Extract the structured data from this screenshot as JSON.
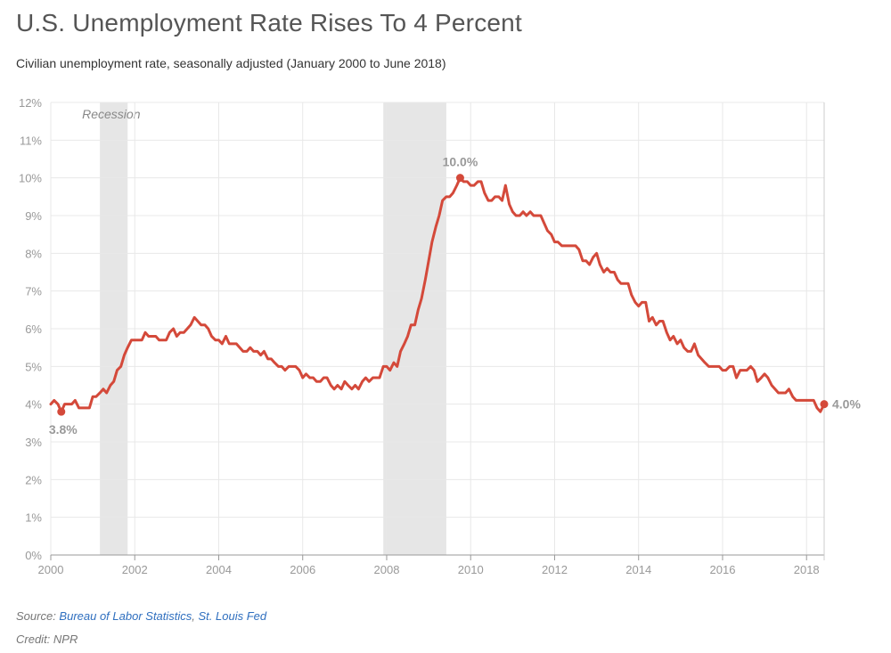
{
  "title": "U.S. Unemployment Rate Rises To 4 Percent",
  "subtitle": "Civilian unemployment rate, seasonally adjusted (January 2000 to June 2018)",
  "source": {
    "prefix": "Source: ",
    "link1": "Bureau of Labor Statistics",
    "sep": ", ",
    "link2": "St. Louis Fed"
  },
  "credit": "Credit: NPR",
  "colors": {
    "line": "#d4493a",
    "recession": "#e6e6e6",
    "grid": "#e8e8e8",
    "axis": "#999999"
  },
  "chart_data": {
    "type": "line",
    "title": "U.S. Unemployment Rate Rises To 4 Percent",
    "subtitle": "Civilian unemployment rate, seasonally adjusted (January 2000 to June 2018)",
    "xlabel": "",
    "ylabel": "",
    "xlim": [
      2000.0,
      2018.42
    ],
    "ylim": [
      0,
      12
    ],
    "grid": true,
    "y_ticks": [
      0,
      1,
      2,
      3,
      4,
      5,
      6,
      7,
      8,
      9,
      10,
      11,
      12
    ],
    "y_tick_labels": [
      "0%",
      "1%",
      "2%",
      "3%",
      "4%",
      "5%",
      "6%",
      "7%",
      "8%",
      "9%",
      "10%",
      "11%",
      "12%"
    ],
    "x_ticks": [
      2000,
      2002,
      2004,
      2006,
      2008,
      2010,
      2012,
      2014,
      2016,
      2018
    ],
    "x_tick_labels": [
      "2000",
      "2002",
      "2004",
      "2006",
      "2008",
      "2010",
      "2012",
      "2014",
      "2016",
      "2018"
    ],
    "recessions": [
      {
        "start": 2001.17,
        "end": 2001.83
      },
      {
        "start": 2007.92,
        "end": 2009.42
      }
    ],
    "recession_label": "Recession",
    "series": [
      {
        "points": [
          [
            2000.0,
            4.0
          ],
          [
            2000.08,
            4.1
          ],
          [
            2000.17,
            4.0
          ],
          [
            2000.25,
            3.8
          ],
          [
            2000.33,
            4.0
          ],
          [
            2000.42,
            4.0
          ],
          [
            2000.5,
            4.0
          ],
          [
            2000.58,
            4.1
          ],
          [
            2000.67,
            3.9
          ],
          [
            2000.75,
            3.9
          ],
          [
            2000.83,
            3.9
          ],
          [
            2000.92,
            3.9
          ],
          [
            2001.0,
            4.2
          ],
          [
            2001.08,
            4.2
          ],
          [
            2001.17,
            4.3
          ],
          [
            2001.25,
            4.4
          ],
          [
            2001.33,
            4.3
          ],
          [
            2001.42,
            4.5
          ],
          [
            2001.5,
            4.6
          ],
          [
            2001.58,
            4.9
          ],
          [
            2001.67,
            5.0
          ],
          [
            2001.75,
            5.3
          ],
          [
            2001.83,
            5.5
          ],
          [
            2001.92,
            5.7
          ],
          [
            2002.0,
            5.7
          ],
          [
            2002.08,
            5.7
          ],
          [
            2002.17,
            5.7
          ],
          [
            2002.25,
            5.9
          ],
          [
            2002.33,
            5.8
          ],
          [
            2002.42,
            5.8
          ],
          [
            2002.5,
            5.8
          ],
          [
            2002.58,
            5.7
          ],
          [
            2002.67,
            5.7
          ],
          [
            2002.75,
            5.7
          ],
          [
            2002.83,
            5.9
          ],
          [
            2002.92,
            6.0
          ],
          [
            2003.0,
            5.8
          ],
          [
            2003.08,
            5.9
          ],
          [
            2003.17,
            5.9
          ],
          [
            2003.25,
            6.0
          ],
          [
            2003.33,
            6.1
          ],
          [
            2003.42,
            6.3
          ],
          [
            2003.5,
            6.2
          ],
          [
            2003.58,
            6.1
          ],
          [
            2003.67,
            6.1
          ],
          [
            2003.75,
            6.0
          ],
          [
            2003.83,
            5.8
          ],
          [
            2003.92,
            5.7
          ],
          [
            2004.0,
            5.7
          ],
          [
            2004.08,
            5.6
          ],
          [
            2004.17,
            5.8
          ],
          [
            2004.25,
            5.6
          ],
          [
            2004.33,
            5.6
          ],
          [
            2004.42,
            5.6
          ],
          [
            2004.5,
            5.5
          ],
          [
            2004.58,
            5.4
          ],
          [
            2004.67,
            5.4
          ],
          [
            2004.75,
            5.5
          ],
          [
            2004.83,
            5.4
          ],
          [
            2004.92,
            5.4
          ],
          [
            2005.0,
            5.3
          ],
          [
            2005.08,
            5.4
          ],
          [
            2005.17,
            5.2
          ],
          [
            2005.25,
            5.2
          ],
          [
            2005.33,
            5.1
          ],
          [
            2005.42,
            5.0
          ],
          [
            2005.5,
            5.0
          ],
          [
            2005.58,
            4.9
          ],
          [
            2005.67,
            5.0
          ],
          [
            2005.75,
            5.0
          ],
          [
            2005.83,
            5.0
          ],
          [
            2005.92,
            4.9
          ],
          [
            2006.0,
            4.7
          ],
          [
            2006.08,
            4.8
          ],
          [
            2006.17,
            4.7
          ],
          [
            2006.25,
            4.7
          ],
          [
            2006.33,
            4.6
          ],
          [
            2006.42,
            4.6
          ],
          [
            2006.5,
            4.7
          ],
          [
            2006.58,
            4.7
          ],
          [
            2006.67,
            4.5
          ],
          [
            2006.75,
            4.4
          ],
          [
            2006.83,
            4.5
          ],
          [
            2006.92,
            4.4
          ],
          [
            2007.0,
            4.6
          ],
          [
            2007.08,
            4.5
          ],
          [
            2007.17,
            4.4
          ],
          [
            2007.25,
            4.5
          ],
          [
            2007.33,
            4.4
          ],
          [
            2007.42,
            4.6
          ],
          [
            2007.5,
            4.7
          ],
          [
            2007.58,
            4.6
          ],
          [
            2007.67,
            4.7
          ],
          [
            2007.75,
            4.7
          ],
          [
            2007.83,
            4.7
          ],
          [
            2007.92,
            5.0
          ],
          [
            2008.0,
            5.0
          ],
          [
            2008.08,
            4.9
          ],
          [
            2008.17,
            5.1
          ],
          [
            2008.25,
            5.0
          ],
          [
            2008.33,
            5.4
          ],
          [
            2008.42,
            5.6
          ],
          [
            2008.5,
            5.8
          ],
          [
            2008.58,
            6.1
          ],
          [
            2008.67,
            6.1
          ],
          [
            2008.75,
            6.5
          ],
          [
            2008.83,
            6.8
          ],
          [
            2008.92,
            7.3
          ],
          [
            2009.0,
            7.8
          ],
          [
            2009.08,
            8.3
          ],
          [
            2009.17,
            8.7
          ],
          [
            2009.25,
            9.0
          ],
          [
            2009.33,
            9.4
          ],
          [
            2009.42,
            9.5
          ],
          [
            2009.5,
            9.5
          ],
          [
            2009.58,
            9.6
          ],
          [
            2009.67,
            9.8
          ],
          [
            2009.75,
            10.0
          ],
          [
            2009.83,
            9.9
          ],
          [
            2009.92,
            9.9
          ],
          [
            2010.0,
            9.8
          ],
          [
            2010.08,
            9.8
          ],
          [
            2010.17,
            9.9
          ],
          [
            2010.25,
            9.9
          ],
          [
            2010.33,
            9.6
          ],
          [
            2010.42,
            9.4
          ],
          [
            2010.5,
            9.4
          ],
          [
            2010.58,
            9.5
          ],
          [
            2010.67,
            9.5
          ],
          [
            2010.75,
            9.4
          ],
          [
            2010.83,
            9.8
          ],
          [
            2010.92,
            9.3
          ],
          [
            2011.0,
            9.1
          ],
          [
            2011.08,
            9.0
          ],
          [
            2011.17,
            9.0
          ],
          [
            2011.25,
            9.1
          ],
          [
            2011.33,
            9.0
          ],
          [
            2011.42,
            9.1
          ],
          [
            2011.5,
            9.0
          ],
          [
            2011.58,
            9.0
          ],
          [
            2011.67,
            9.0
          ],
          [
            2011.75,
            8.8
          ],
          [
            2011.83,
            8.6
          ],
          [
            2011.92,
            8.5
          ],
          [
            2012.0,
            8.3
          ],
          [
            2012.08,
            8.3
          ],
          [
            2012.17,
            8.2
          ],
          [
            2012.25,
            8.2
          ],
          [
            2012.33,
            8.2
          ],
          [
            2012.42,
            8.2
          ],
          [
            2012.5,
            8.2
          ],
          [
            2012.58,
            8.1
          ],
          [
            2012.67,
            7.8
          ],
          [
            2012.75,
            7.8
          ],
          [
            2012.83,
            7.7
          ],
          [
            2012.92,
            7.9
          ],
          [
            2013.0,
            8.0
          ],
          [
            2013.08,
            7.7
          ],
          [
            2013.17,
            7.5
          ],
          [
            2013.25,
            7.6
          ],
          [
            2013.33,
            7.5
          ],
          [
            2013.42,
            7.5
          ],
          [
            2013.5,
            7.3
          ],
          [
            2013.58,
            7.2
          ],
          [
            2013.67,
            7.2
          ],
          [
            2013.75,
            7.2
          ],
          [
            2013.83,
            6.9
          ],
          [
            2013.92,
            6.7
          ],
          [
            2014.0,
            6.6
          ],
          [
            2014.08,
            6.7
          ],
          [
            2014.17,
            6.7
          ],
          [
            2014.25,
            6.2
          ],
          [
            2014.33,
            6.3
          ],
          [
            2014.42,
            6.1
          ],
          [
            2014.5,
            6.2
          ],
          [
            2014.58,
            6.2
          ],
          [
            2014.67,
            5.9
          ],
          [
            2014.75,
            5.7
          ],
          [
            2014.83,
            5.8
          ],
          [
            2014.92,
            5.6
          ],
          [
            2015.0,
            5.7
          ],
          [
            2015.08,
            5.5
          ],
          [
            2015.17,
            5.4
          ],
          [
            2015.25,
            5.4
          ],
          [
            2015.33,
            5.6
          ],
          [
            2015.42,
            5.3
          ],
          [
            2015.5,
            5.2
          ],
          [
            2015.58,
            5.1
          ],
          [
            2015.67,
            5.0
          ],
          [
            2015.75,
            5.0
          ],
          [
            2015.83,
            5.0
          ],
          [
            2015.92,
            5.0
          ],
          [
            2016.0,
            4.9
          ],
          [
            2016.08,
            4.9
          ],
          [
            2016.17,
            5.0
          ],
          [
            2016.25,
            5.0
          ],
          [
            2016.33,
            4.7
          ],
          [
            2016.42,
            4.9
          ],
          [
            2016.5,
            4.9
          ],
          [
            2016.58,
            4.9
          ],
          [
            2016.67,
            5.0
          ],
          [
            2016.75,
            4.9
          ],
          [
            2016.83,
            4.6
          ],
          [
            2016.92,
            4.7
          ],
          [
            2017.0,
            4.8
          ],
          [
            2017.08,
            4.7
          ],
          [
            2017.17,
            4.5
          ],
          [
            2017.25,
            4.4
          ],
          [
            2017.33,
            4.3
          ],
          [
            2017.42,
            4.3
          ],
          [
            2017.5,
            4.3
          ],
          [
            2017.58,
            4.4
          ],
          [
            2017.67,
            4.2
          ],
          [
            2017.75,
            4.1
          ],
          [
            2017.83,
            4.1
          ],
          [
            2017.92,
            4.1
          ],
          [
            2018.0,
            4.1
          ],
          [
            2018.08,
            4.1
          ],
          [
            2018.17,
            4.1
          ],
          [
            2018.25,
            3.9
          ],
          [
            2018.33,
            3.8
          ],
          [
            2018.42,
            4.0
          ]
        ]
      }
    ],
    "annotations": [
      {
        "x": 2000.25,
        "y": 3.8,
        "label": "3.8%",
        "pos": "below"
      },
      {
        "x": 2009.75,
        "y": 10.0,
        "label": "10.0%",
        "pos": "above"
      },
      {
        "x": 2018.42,
        "y": 4.0,
        "label": "4.0%",
        "pos": "right"
      }
    ]
  }
}
